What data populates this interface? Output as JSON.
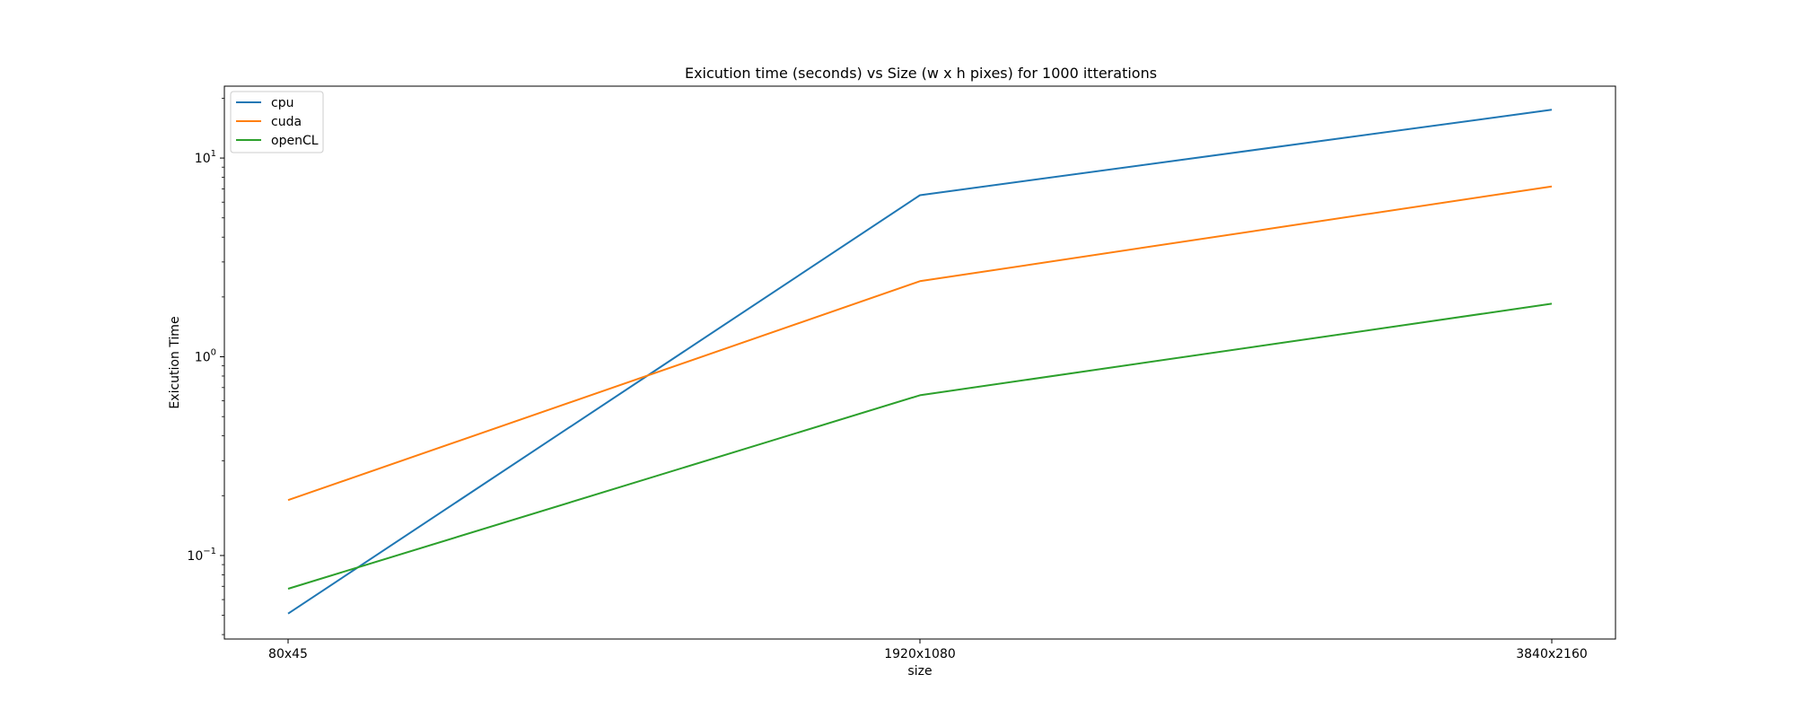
{
  "chart_data": {
    "type": "line",
    "title": "Exicution time (seconds) vs Size (w x h pixes) for 1000 itterations",
    "xlabel": "size",
    "ylabel": "Exicution Time",
    "categories": [
      "80x45",
      "1920x1080",
      "3840x2160"
    ],
    "y_scale": "log",
    "ylim": [
      0.038,
      23
    ],
    "y_ticks": [
      {
        "value": 0.1,
        "base": "10",
        "exp": "−1"
      },
      {
        "value": 1,
        "base": "10",
        "exp": "0"
      },
      {
        "value": 10,
        "base": "10",
        "exp": "1"
      }
    ],
    "grid": false,
    "legend_position": "upper-left",
    "series": [
      {
        "name": "cpu",
        "color": "#1f77b4",
        "values": [
          0.051,
          6.5,
          17.5
        ]
      },
      {
        "name": "cuda",
        "color": "#ff7f0e",
        "values": [
          0.19,
          2.4,
          7.2
        ]
      },
      {
        "name": "openCL",
        "color": "#2ca02c",
        "values": [
          0.068,
          0.64,
          1.85
        ]
      }
    ]
  }
}
